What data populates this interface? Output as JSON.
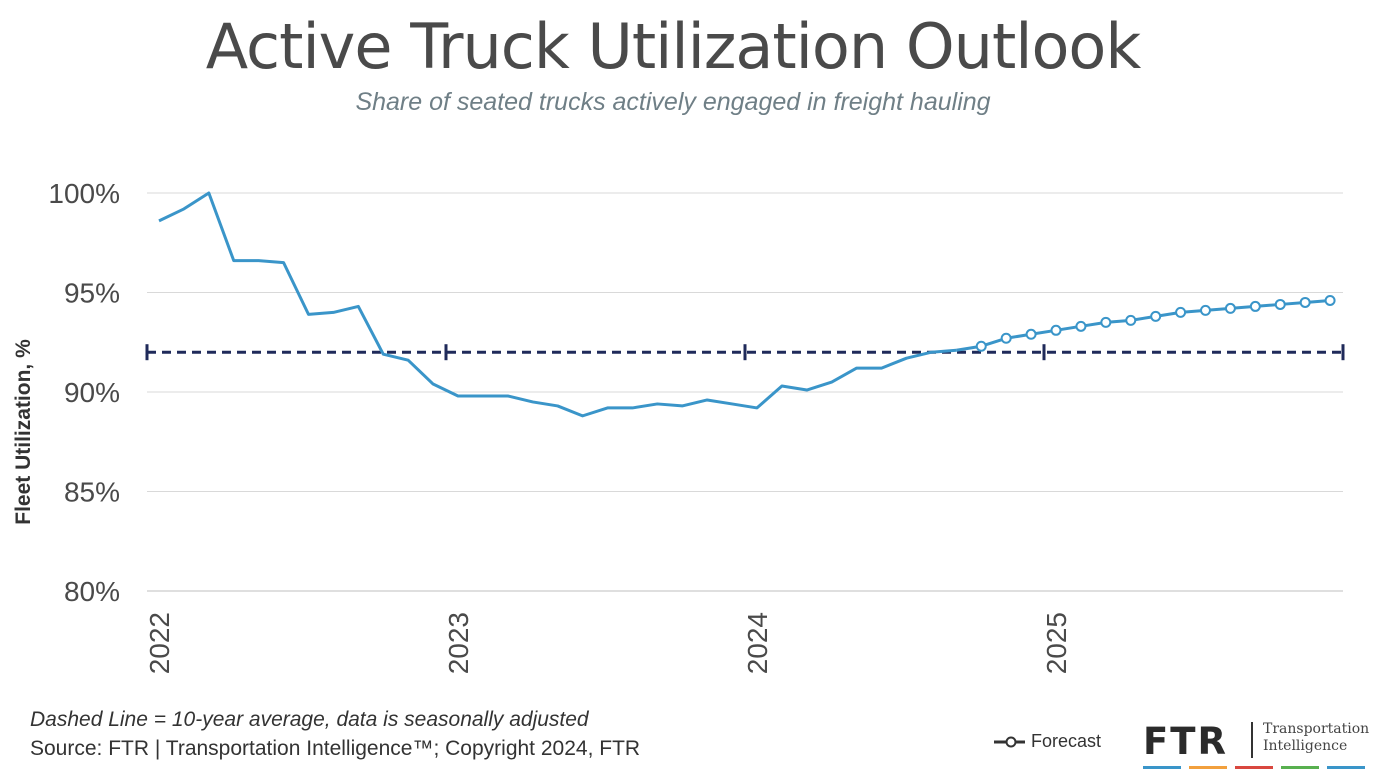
{
  "header": {
    "title": "Active Truck Utilization Outlook",
    "subtitle": "Share of seated trucks actively engaged in freight hauling"
  },
  "chart_data": {
    "type": "line",
    "ylabel": "Fleet Utilization, %",
    "ylim": [
      80,
      100
    ],
    "yticks": [
      80,
      85,
      90,
      95,
      100
    ],
    "ytick_labels": [
      "80%",
      "85%",
      "90%",
      "95%",
      "100%"
    ],
    "x_start": "2022-01",
    "x_end": "2025-12",
    "xtick_labels": [
      "2022",
      "2023",
      "2024",
      "2025"
    ],
    "grid": "horizontal",
    "reference_line": {
      "value": 92.0
    },
    "series": [
      {
        "name": "",
        "color": "#3a95c9",
        "x": [
          "2022-01",
          "2022-02",
          "2022-03",
          "2022-04",
          "2022-05",
          "2022-06",
          "2022-07",
          "2022-08",
          "2022-09",
          "2022-10",
          "2022-11",
          "2022-12",
          "2023-01",
          "2023-02",
          "2023-03",
          "2023-04",
          "2023-05",
          "2023-06",
          "2023-07",
          "2023-08",
          "2023-09",
          "2023-10",
          "2023-11",
          "2023-12",
          "2024-01",
          "2024-02",
          "2024-03",
          "2024-04",
          "2024-05",
          "2024-06",
          "2024-07",
          "2024-08",
          "2024-09"
        ],
        "values": [
          98.6,
          99.2,
          100.0,
          96.6,
          96.6,
          96.5,
          93.9,
          94.0,
          94.3,
          91.9,
          91.6,
          90.4,
          89.8,
          89.8,
          89.8,
          89.5,
          89.3,
          88.8,
          89.2,
          89.2,
          89.4,
          89.3,
          89.6,
          89.4,
          89.2,
          90.3,
          90.1,
          90.5,
          91.2,
          91.2,
          91.7,
          92.0,
          92.1
        ]
      },
      {
        "name": "Forecast",
        "color": "#3a95c9",
        "x": [
          "2024-09",
          "2024-10",
          "2024-11",
          "2024-12",
          "2025-01",
          "2025-02",
          "2025-03",
          "2025-04",
          "2025-05",
          "2025-06",
          "2025-07",
          "2025-08",
          "2025-09",
          "2025-10",
          "2025-11",
          "2025-12"
        ],
        "values": [
          92.1,
          92.3,
          92.7,
          92.9,
          93.1,
          93.3,
          93.5,
          93.6,
          93.8,
          94.0,
          94.1,
          94.2,
          94.3,
          94.4,
          94.5,
          94.6
        ]
      }
    ]
  },
  "footer": {
    "note": "Dashed Line = 10-year average, data is seasonally adjusted",
    "source": "Source: FTR | Transportation Intelligence™; Copyright 2024, FTR",
    "legend_label": "Forecast"
  },
  "logo": {
    "word": "FTR",
    "tag_line1": "Transportation",
    "tag_line2": "Intelligence",
    "bar_colors": [
      "#3a95c9",
      "#f2a03d",
      "#d9473f",
      "#58b04f",
      "#3a95c9"
    ]
  }
}
